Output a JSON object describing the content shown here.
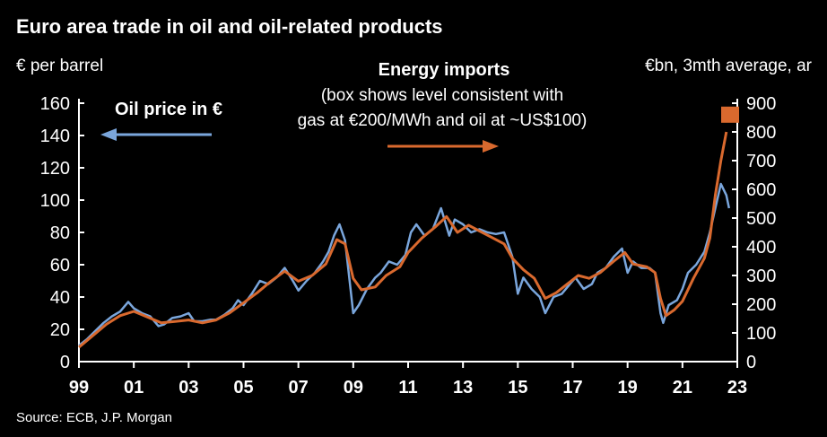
{
  "chart_data": {
    "type": "line",
    "title": "Euro area trade in oil and oil-related products",
    "left_axis_label": "€ per barrel",
    "right_axis_label": "€bn, 3mth average, ar",
    "source": "Source: ECB, J.P. Morgan",
    "x_range": [
      1999,
      2023
    ],
    "x_ticks": [
      "99",
      "01",
      "03",
      "05",
      "07",
      "09",
      "11",
      "13",
      "15",
      "17",
      "19",
      "21",
      "23"
    ],
    "y_left": {
      "min": 0,
      "max": 160,
      "ticks": [
        0,
        20,
        40,
        60,
        80,
        100,
        120,
        140,
        160
      ]
    },
    "y_right": {
      "min": 0,
      "max": 900,
      "ticks": [
        0,
        100,
        200,
        300,
        400,
        500,
        600,
        700,
        800,
        900
      ]
    },
    "grid": false,
    "series": [
      {
        "name": "Oil price in €",
        "axis": "left",
        "color": "#7aa6dc",
        "points": [
          [
            1999.0,
            10
          ],
          [
            1999.3,
            14
          ],
          [
            1999.6,
            19
          ],
          [
            1999.9,
            24
          ],
          [
            2000.2,
            28
          ],
          [
            2000.5,
            31
          ],
          [
            2000.8,
            37
          ],
          [
            2001.0,
            33
          ],
          [
            2001.3,
            30
          ],
          [
            2001.6,
            28
          ],
          [
            2001.9,
            22
          ],
          [
            2002.1,
            23
          ],
          [
            2002.4,
            27
          ],
          [
            2002.7,
            28
          ],
          [
            2003.0,
            30
          ],
          [
            2003.2,
            25
          ],
          [
            2003.5,
            25
          ],
          [
            2003.8,
            26
          ],
          [
            2004.0,
            26
          ],
          [
            2004.3,
            29
          ],
          [
            2004.6,
            33
          ],
          [
            2004.8,
            38
          ],
          [
            2005.0,
            35
          ],
          [
            2005.3,
            42
          ],
          [
            2005.6,
            50
          ],
          [
            2005.9,
            48
          ],
          [
            2006.2,
            52
          ],
          [
            2006.5,
            58
          ],
          [
            2006.8,
            50
          ],
          [
            2007.0,
            44
          ],
          [
            2007.3,
            50
          ],
          [
            2007.6,
            55
          ],
          [
            2007.9,
            62
          ],
          [
            2008.1,
            68
          ],
          [
            2008.3,
            78
          ],
          [
            2008.5,
            85
          ],
          [
            2008.7,
            75
          ],
          [
            2008.9,
            45
          ],
          [
            2009.0,
            30
          ],
          [
            2009.2,
            35
          ],
          [
            2009.5,
            45
          ],
          [
            2009.8,
            52
          ],
          [
            2010.0,
            55
          ],
          [
            2010.3,
            62
          ],
          [
            2010.6,
            60
          ],
          [
            2010.9,
            66
          ],
          [
            2011.1,
            80
          ],
          [
            2011.3,
            85
          ],
          [
            2011.6,
            78
          ],
          [
            2011.9,
            82
          ],
          [
            2012.2,
            95
          ],
          [
            2012.5,
            78
          ],
          [
            2012.7,
            88
          ],
          [
            2013.0,
            85
          ],
          [
            2013.3,
            80
          ],
          [
            2013.6,
            82
          ],
          [
            2013.9,
            80
          ],
          [
            2014.2,
            79
          ],
          [
            2014.5,
            80
          ],
          [
            2014.8,
            65
          ],
          [
            2015.0,
            42
          ],
          [
            2015.2,
            52
          ],
          [
            2015.5,
            45
          ],
          [
            2015.8,
            40
          ],
          [
            2016.0,
            30
          ],
          [
            2016.3,
            40
          ],
          [
            2016.6,
            42
          ],
          [
            2016.9,
            48
          ],
          [
            2017.1,
            52
          ],
          [
            2017.4,
            45
          ],
          [
            2017.7,
            48
          ],
          [
            2017.9,
            55
          ],
          [
            2018.2,
            58
          ],
          [
            2018.5,
            65
          ],
          [
            2018.8,
            70
          ],
          [
            2019.0,
            55
          ],
          [
            2019.2,
            62
          ],
          [
            2019.5,
            58
          ],
          [
            2019.8,
            58
          ],
          [
            2020.0,
            55
          ],
          [
            2020.2,
            30
          ],
          [
            2020.3,
            24
          ],
          [
            2020.5,
            35
          ],
          [
            2020.8,
            38
          ],
          [
            2021.0,
            45
          ],
          [
            2021.2,
            55
          ],
          [
            2021.5,
            60
          ],
          [
            2021.8,
            68
          ],
          [
            2022.0,
            80
          ],
          [
            2022.2,
            95
          ],
          [
            2022.4,
            110
          ],
          [
            2022.6,
            103
          ],
          [
            2022.7,
            95
          ]
        ]
      },
      {
        "name": "Energy imports",
        "axis": "right",
        "color": "#d9692e",
        "points": [
          [
            1999.0,
            50
          ],
          [
            1999.5,
            90
          ],
          [
            2000.0,
            130
          ],
          [
            2000.5,
            160
          ],
          [
            2001.0,
            175
          ],
          [
            2001.5,
            155
          ],
          [
            2002.0,
            135
          ],
          [
            2002.5,
            140
          ],
          [
            2003.0,
            145
          ],
          [
            2003.5,
            135
          ],
          [
            2004.0,
            145
          ],
          [
            2004.5,
            170
          ],
          [
            2005.0,
            205
          ],
          [
            2005.5,
            240
          ],
          [
            2006.0,
            280
          ],
          [
            2006.5,
            315
          ],
          [
            2007.0,
            280
          ],
          [
            2007.5,
            300
          ],
          [
            2008.0,
            340
          ],
          [
            2008.4,
            425
          ],
          [
            2008.7,
            410
          ],
          [
            2009.0,
            290
          ],
          [
            2009.3,
            250
          ],
          [
            2009.8,
            260
          ],
          [
            2010.2,
            300
          ],
          [
            2010.7,
            330
          ],
          [
            2011.0,
            380
          ],
          [
            2011.5,
            430
          ],
          [
            2012.0,
            470
          ],
          [
            2012.4,
            505
          ],
          [
            2012.8,
            450
          ],
          [
            2013.2,
            475
          ],
          [
            2013.6,
            455
          ],
          [
            2014.0,
            435
          ],
          [
            2014.5,
            410
          ],
          [
            2014.8,
            360
          ],
          [
            2015.2,
            320
          ],
          [
            2015.6,
            290
          ],
          [
            2016.0,
            220
          ],
          [
            2016.4,
            240
          ],
          [
            2016.8,
            270
          ],
          [
            2017.2,
            300
          ],
          [
            2017.6,
            290
          ],
          [
            2018.0,
            310
          ],
          [
            2018.5,
            350
          ],
          [
            2018.9,
            380
          ],
          [
            2019.2,
            340
          ],
          [
            2019.7,
            330
          ],
          [
            2020.0,
            310
          ],
          [
            2020.2,
            220
          ],
          [
            2020.4,
            160
          ],
          [
            2020.7,
            180
          ],
          [
            2021.0,
            210
          ],
          [
            2021.4,
            290
          ],
          [
            2021.8,
            360
          ],
          [
            2022.0,
            430
          ],
          [
            2022.2,
            580
          ],
          [
            2022.4,
            700
          ],
          [
            2022.6,
            800
          ]
        ]
      }
    ],
    "marker": {
      "label": "box",
      "x": 2023,
      "axis": "right",
      "y": 860,
      "color": "#d9692e"
    },
    "annotations": {
      "oil_label": "Oil price in €",
      "energy_title": "Energy imports",
      "energy_line1": "(box shows level consistent with",
      "energy_line2": "gas at €200/MWh and oil at ~US$100)"
    }
  }
}
